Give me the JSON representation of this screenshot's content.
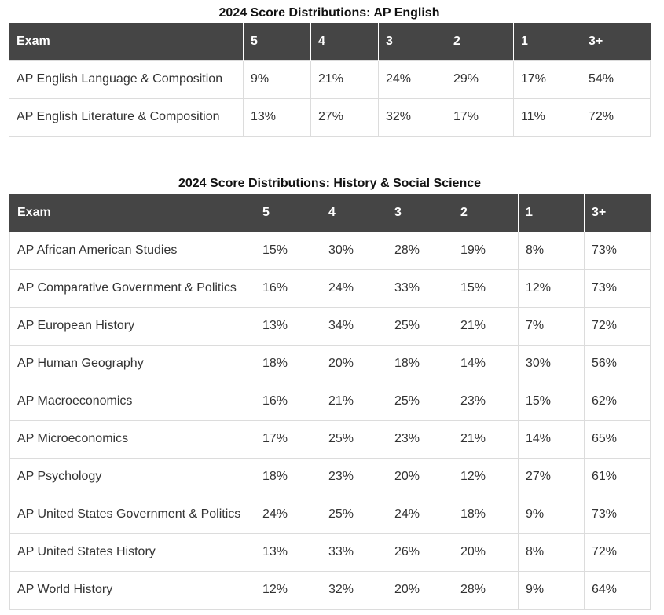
{
  "english": {
    "title": "2024 Score Distributions: AP English",
    "headers": [
      "Exam",
      "5",
      "4",
      "3",
      "2",
      "1",
      "3+"
    ],
    "rows": [
      [
        "AP English Language & Composition",
        "9%",
        "21%",
        "24%",
        "29%",
        "17%",
        "54%"
      ],
      [
        "AP English Literature & Composition",
        "13%",
        "27%",
        "32%",
        "17%",
        "11%",
        "72%"
      ]
    ]
  },
  "history": {
    "title": "2024 Score Distributions: History & Social Science",
    "headers": [
      "Exam",
      "5",
      "4",
      "3",
      "2",
      "1",
      "3+"
    ],
    "rows": [
      [
        "AP African American Studies",
        "15%",
        "30%",
        "28%",
        "19%",
        "8%",
        "73%"
      ],
      [
        "AP Comparative Government & Politics",
        "16%",
        "24%",
        "33%",
        "15%",
        "12%",
        "73%"
      ],
      [
        "AP European History",
        "13%",
        "34%",
        "25%",
        "21%",
        "7%",
        "72%"
      ],
      [
        "AP Human Geography",
        "18%",
        "20%",
        "18%",
        "14%",
        "30%",
        "56%"
      ],
      [
        "AP Macroeconomics",
        "16%",
        "21%",
        "25%",
        "23%",
        "15%",
        "62%"
      ],
      [
        "AP Microeconomics",
        "17%",
        "25%",
        "23%",
        "21%",
        "14%",
        "65%"
      ],
      [
        "AP Psychology",
        "18%",
        "23%",
        "20%",
        "12%",
        "27%",
        "61%"
      ],
      [
        "AP United States Government & Politics",
        "24%",
        "25%",
        "24%",
        "18%",
        "9%",
        "73%"
      ],
      [
        "AP United States History",
        "13%",
        "33%",
        "26%",
        "20%",
        "8%",
        "72%"
      ],
      [
        "AP World History",
        "12%",
        "32%",
        "20%",
        "28%",
        "9%",
        "64%"
      ]
    ]
  }
}
